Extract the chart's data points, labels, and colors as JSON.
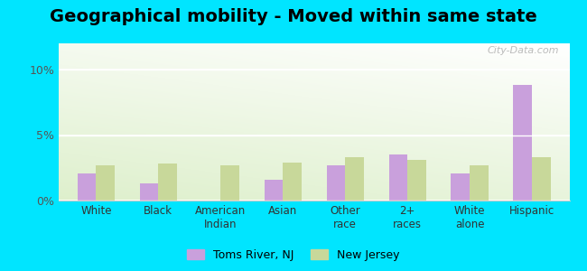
{
  "title": "Geographical mobility - Moved within same state",
  "categories": [
    "White",
    "Black",
    "American\nIndian",
    "Asian",
    "Other\nrace",
    "2+\nraces",
    "White\nalone",
    "Hispanic"
  ],
  "toms_river": [
    2.1,
    1.3,
    0.0,
    1.6,
    2.7,
    3.5,
    2.1,
    8.8
  ],
  "new_jersey": [
    2.7,
    2.8,
    2.7,
    2.9,
    3.3,
    3.1,
    2.7,
    3.3
  ],
  "toms_river_color": "#c9a0dc",
  "new_jersey_color": "#c8d89a",
  "ylim": [
    0,
    12
  ],
  "yticks": [
    0,
    5,
    10
  ],
  "ytick_labels": [
    "0%",
    "5%",
    "10%"
  ],
  "outer_background": "#00e5ff",
  "title_fontsize": 14,
  "legend_label_toms": "Toms River, NJ",
  "legend_label_nj": "New Jersey",
  "watermark": "City-Data.com",
  "bg_colors": [
    "#ddeec8",
    "#eef5df",
    "#f5faf0",
    "#ffffff"
  ],
  "bar_width": 0.3
}
